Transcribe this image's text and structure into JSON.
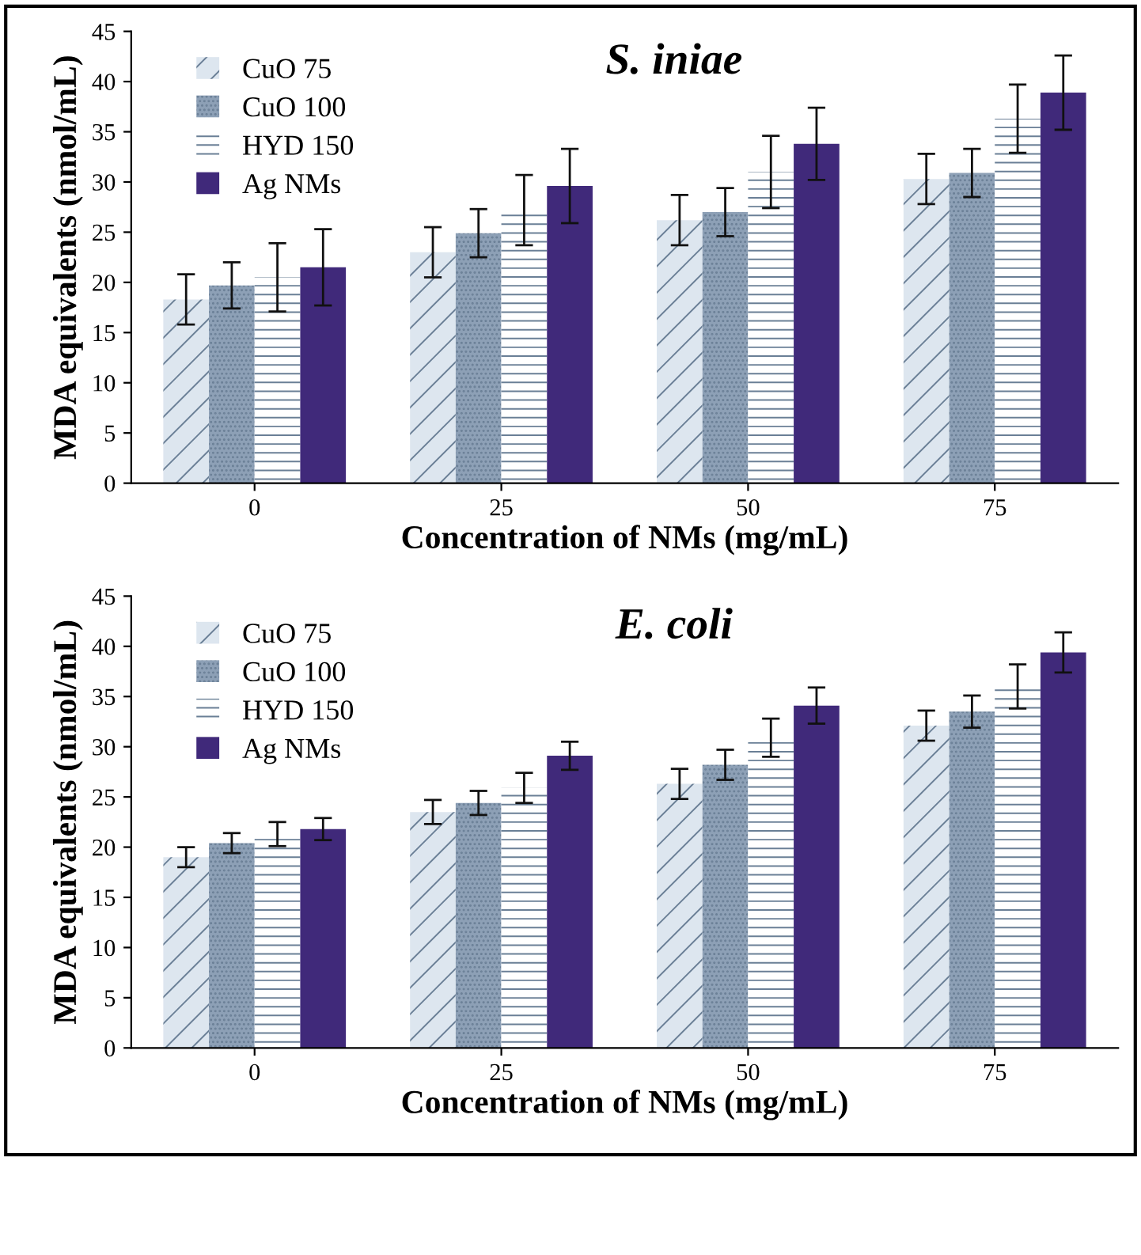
{
  "chart_data": [
    {
      "type": "bar",
      "title": "S. iniae",
      "xlabel": "Concentration of NMs (mg/mL)",
      "ylabel": "MDA equivalents (nmol/mL)",
      "categories": [
        "0",
        "25",
        "50",
        "75"
      ],
      "ylim": [
        0,
        45
      ],
      "yticks": [
        0,
        5,
        10,
        15,
        20,
        25,
        30,
        35,
        40,
        45
      ],
      "grid": false,
      "legend": "top left",
      "series": [
        {
          "name": "CuO 75",
          "color": "#dde6ef",
          "values": [
            18.3,
            23,
            26.2,
            30.3
          ],
          "errors": [
            2.5,
            2.5,
            2.5,
            2.5
          ]
        },
        {
          "name": "CuO 100",
          "color": "#8da0b6",
          "values": [
            19.7,
            24.9,
            27,
            30.9
          ],
          "errors": [
            2.3,
            2.4,
            2.4,
            2.4
          ]
        },
        {
          "name": "HYD 150",
          "color": "#ffffff",
          "values": [
            20.5,
            27.2,
            31,
            36.3
          ],
          "errors": [
            3.4,
            3.5,
            3.6,
            3.4
          ]
        },
        {
          "name": "Ag NMs",
          "color": "#40297a",
          "values": [
            21.5,
            29.6,
            33.8,
            38.9
          ],
          "errors": [
            3.8,
            3.7,
            3.6,
            3.7
          ]
        }
      ]
    },
    {
      "type": "bar",
      "title": "E. coli",
      "xlabel": "Concentration of NMs (mg/mL)",
      "ylabel": "MDA equivalents (nmol/mL)",
      "categories": [
        "0",
        "25",
        "50",
        "75"
      ],
      "ylim": [
        0,
        45
      ],
      "yticks": [
        0,
        5,
        10,
        15,
        20,
        25,
        30,
        35,
        40,
        45
      ],
      "grid": false,
      "legend": "top left",
      "series": [
        {
          "name": "CuO 75",
          "color": "#dde6ef",
          "values": [
            19,
            23.5,
            26.3,
            32.1
          ],
          "errors": [
            1,
            1.2,
            1.5,
            1.5
          ]
        },
        {
          "name": "CuO 100",
          "color": "#8da0b6",
          "values": [
            20.4,
            24.4,
            28.2,
            33.5
          ],
          "errors": [
            1,
            1.2,
            1.5,
            1.6
          ]
        },
        {
          "name": "HYD 150",
          "color": "#ffffff",
          "values": [
            21.3,
            25.9,
            30.9,
            36
          ],
          "errors": [
            1.2,
            1.5,
            1.9,
            2.2
          ]
        },
        {
          "name": "Ag NMs",
          "color": "#40297a",
          "values": [
            21.8,
            29.1,
            34.1,
            39.4
          ],
          "errors": [
            1.1,
            1.4,
            1.8,
            2
          ]
        }
      ]
    }
  ]
}
